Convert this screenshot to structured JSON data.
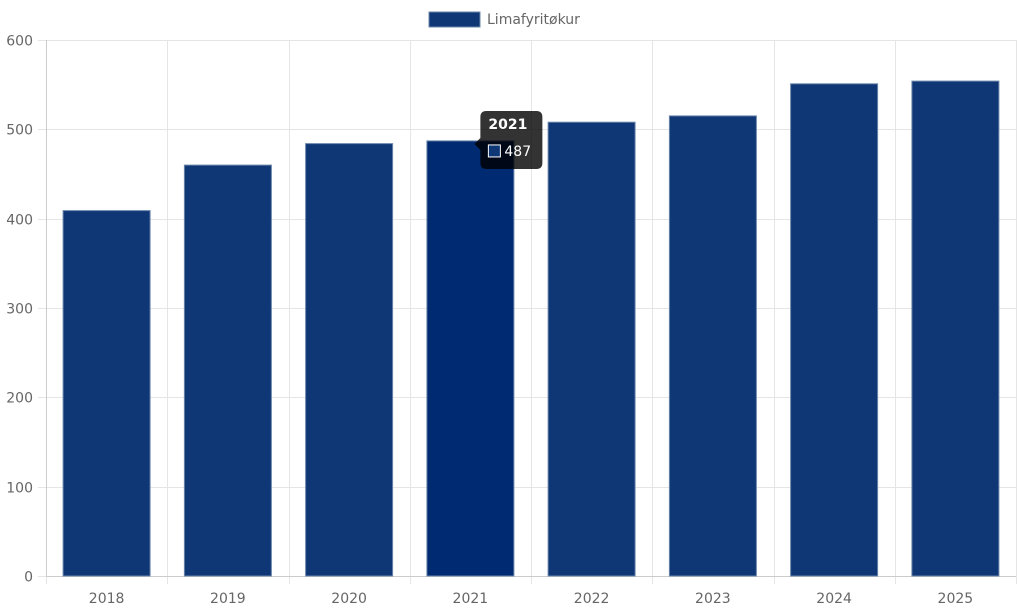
{
  "chart_data": {
    "type": "bar",
    "categories": [
      "2018",
      "2019",
      "2020",
      "2021",
      "2022",
      "2023",
      "2024",
      "2025"
    ],
    "series": [
      {
        "name": "Limafyritøkur",
        "values": [
          409,
          460,
          484,
          487,
          508,
          515,
          551,
          554
        ]
      }
    ],
    "ylim": [
      0,
      600
    ],
    "yticks": [
      0,
      100,
      200,
      300,
      400,
      500,
      600
    ],
    "grid": true,
    "legend_position": "top-center",
    "colors": {
      "bar": "#0f3775",
      "bar_hover": "#002b73",
      "bar_border": "#6b86aa",
      "grid": "#e5e5e5",
      "axis": "#cccccc",
      "tooltip_bg": "#000000"
    },
    "tooltip": {
      "title": "2021",
      "value": "487",
      "category_index": 3
    }
  }
}
